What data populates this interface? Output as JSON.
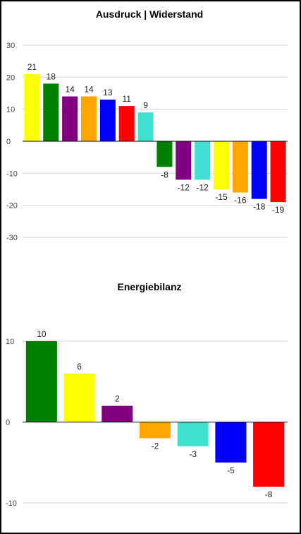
{
  "chart_data": [
    {
      "type": "bar",
      "title": "Ausdruck | Widerstand",
      "xlabel": "",
      "ylabel": "",
      "ylim": [
        -30,
        30
      ],
      "yticks": [
        30,
        20,
        10,
        0,
        -10,
        -20,
        -30
      ],
      "grid": true,
      "legend": "none",
      "values": [
        21,
        18,
        14,
        14,
        13,
        11,
        9,
        -8,
        -12,
        -12,
        -15,
        -16,
        -18,
        -19
      ],
      "colors": [
        "#ffff00",
        "#008000",
        "#800080",
        "#ffa500",
        "#0000ff",
        "#ff0000",
        "#40e0d0",
        "#008000",
        "#800080",
        "#40e0d0",
        "#ffff00",
        "#ffa500",
        "#0000ff",
        "#ff0000"
      ]
    },
    {
      "type": "bar",
      "title": "Energiebilanz",
      "xlabel": "",
      "ylabel": "",
      "ylim": [
        -10,
        10
      ],
      "yticks": [
        10,
        0,
        -10
      ],
      "grid": true,
      "legend": "none",
      "values": [
        10,
        6,
        2,
        -2,
        -3,
        -5,
        -8
      ],
      "colors": [
        "#008000",
        "#ffff00",
        "#800080",
        "#ffa500",
        "#40e0d0",
        "#0000ff",
        "#ff0000"
      ]
    }
  ]
}
